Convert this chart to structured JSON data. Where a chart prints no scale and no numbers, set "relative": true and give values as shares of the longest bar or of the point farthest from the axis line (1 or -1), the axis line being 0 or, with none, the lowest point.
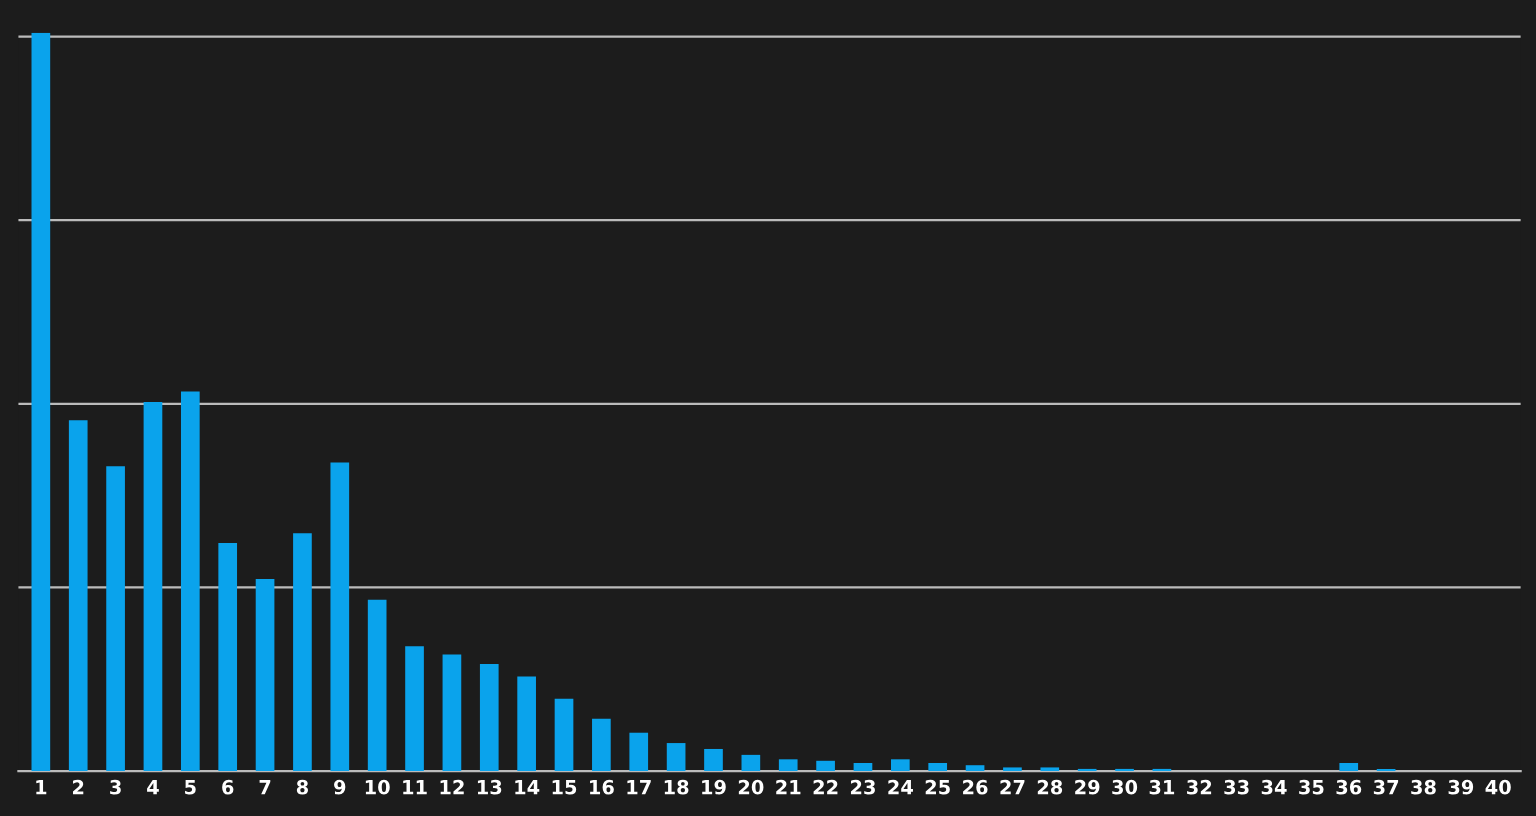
{
  "chart_data": {
    "type": "bar",
    "relative": true,
    "categories": [
      "1",
      "2",
      "3",
      "4",
      "5",
      "6",
      "7",
      "8",
      "9",
      "10",
      "11",
      "12",
      "13",
      "14",
      "15",
      "16",
      "17",
      "18",
      "19",
      "20",
      "21",
      "22",
      "23",
      "24",
      "25",
      "26",
      "27",
      "28",
      "29",
      "30",
      "31",
      "32",
      "33",
      "34",
      "35",
      "36",
      "37",
      "38",
      "39",
      "40"
    ],
    "values": [
      1,
      0.475,
      0.413,
      0.5,
      0.514,
      0.309,
      0.26,
      0.322,
      0.418,
      0.232,
      0.169,
      0.158,
      0.145,
      0.128,
      0.098,
      0.071,
      0.052,
      0.038,
      0.03,
      0.022,
      0.016,
      0.014,
      0.011,
      0.016,
      0.011,
      0.008,
      0.005,
      0.005,
      0.003,
      0.003,
      0.003,
      0,
      0,
      0,
      0,
      0.011,
      0.003,
      0,
      0,
      0
    ],
    "color": "#0aa3ec",
    "grid": "y"
  }
}
